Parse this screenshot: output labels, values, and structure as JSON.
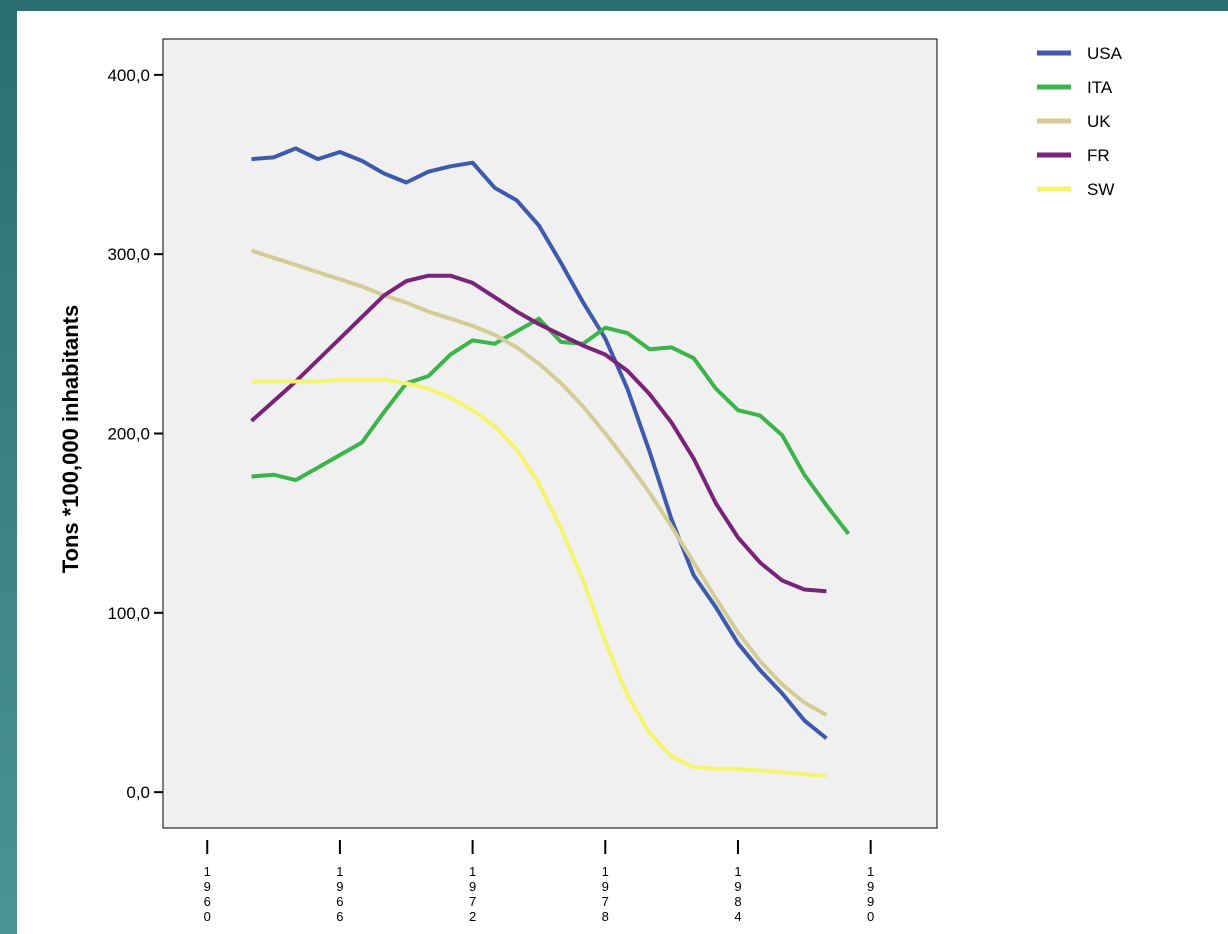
{
  "chart_data": {
    "type": "line",
    "title": "",
    "xlabel": "",
    "ylabel": "Tons *100,000 inhabitants",
    "xlim": [
      1958,
      1993
    ],
    "ylim": [
      -20,
      420
    ],
    "grid": false,
    "legend_position": "top-right",
    "x_ticks": [
      {
        "value": 1960,
        "label": "1960"
      },
      {
        "value": 1966,
        "label": "1966"
      },
      {
        "value": 1972,
        "label": "1972"
      },
      {
        "value": 1978,
        "label": "1978"
      },
      {
        "value": 1984,
        "label": "1984"
      },
      {
        "value": 1990,
        "label": "1990"
      }
    ],
    "y_ticks": [
      {
        "value": 0,
        "label": "0,0"
      },
      {
        "value": 100,
        "label": "100,0"
      },
      {
        "value": 200,
        "label": "200,0"
      },
      {
        "value": 300,
        "label": "300,0"
      },
      {
        "value": 400,
        "label": "400,0"
      }
    ],
    "x": [
      1962,
      1963,
      1964,
      1965,
      1966,
      1967,
      1968,
      1969,
      1970,
      1971,
      1972,
      1973,
      1974,
      1975,
      1976,
      1977,
      1978,
      1979,
      1980,
      1981,
      1982,
      1983,
      1984,
      1985,
      1986,
      1987,
      1988
    ],
    "series": [
      {
        "name": "USA",
        "color": "#3d5aad",
        "values": [
          353,
          354,
          359,
          353,
          357,
          352,
          345,
          340,
          346,
          349,
          351,
          337,
          330,
          316,
          295,
          273,
          253,
          225,
          190,
          152,
          121,
          103,
          83,
          68,
          55,
          40,
          30
        ]
      },
      {
        "name": "ITA",
        "color": "#3cb44b",
        "x": [
          1962,
          1963,
          1964,
          1965,
          1966,
          1967,
          1968,
          1969,
          1970,
          1971,
          1972,
          1973,
          1974,
          1975,
          1976,
          1977,
          1978,
          1979,
          1980,
          1981,
          1982,
          1983,
          1984,
          1985,
          1986,
          1987,
          1988,
          1989
        ],
        "values": [
          176,
          177,
          174,
          181,
          188,
          195,
          212,
          228,
          232,
          244,
          252,
          250,
          257,
          264,
          251,
          250,
          259,
          256,
          247,
          248,
          242,
          225,
          213,
          210,
          199,
          177,
          160,
          144
        ]
      },
      {
        "name": "UK",
        "color": "#d4cc96",
        "values": [
          302,
          298,
          294,
          290,
          286,
          282,
          277,
          273,
          268,
          264,
          260,
          255,
          248,
          239,
          228,
          215,
          200,
          184,
          167,
          148,
          128,
          108,
          89,
          73,
          60,
          50,
          43
        ]
      },
      {
        "name": "FR",
        "color": "#7a2479",
        "values": [
          207,
          218,
          229,
          241,
          253,
          265,
          277,
          285,
          288,
          288,
          284,
          276,
          268,
          261,
          255,
          249,
          244,
          235,
          222,
          206,
          186,
          161,
          142,
          128,
          118,
          113,
          112
        ]
      },
      {
        "name": "SW",
        "color": "#f4f46e",
        "values": [
          229,
          229,
          229,
          229,
          230,
          230,
          230,
          228,
          225,
          220,
          213,
          204,
          191,
          172,
          147,
          118,
          84,
          54,
          33,
          20,
          14,
          13,
          13,
          12,
          11,
          10,
          9
        ]
      }
    ]
  }
}
